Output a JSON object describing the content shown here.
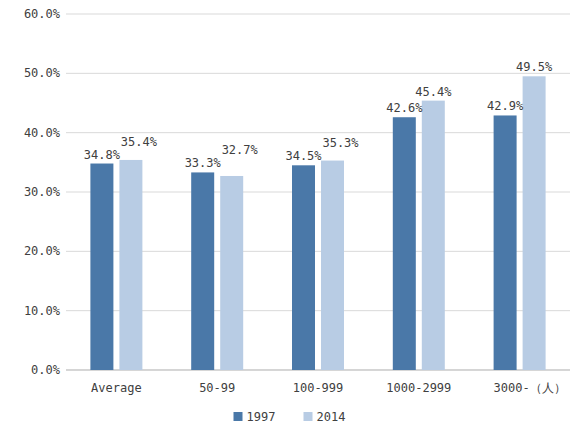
{
  "chart_data": {
    "type": "bar",
    "categories": [
      "Average",
      "50-99",
      "100-999",
      "1000-2999",
      "3000-（人）"
    ],
    "series": [
      {
        "name": "1997",
        "color": "#4a78a8",
        "values": [
          34.8,
          33.3,
          34.5,
          42.6,
          42.9
        ],
        "value_labels": [
          "34.8%",
          "33.3%",
          "34.5%",
          "42.6%",
          "42.9%"
        ]
      },
      {
        "name": "2014",
        "color": "#b8cce4",
        "values": [
          35.4,
          32.7,
          35.3,
          45.4,
          49.5
        ],
        "value_labels": [
          "35.4%",
          "32.7%",
          "35.3%",
          "45.4%",
          "49.5%"
        ]
      }
    ],
    "ylim": [
      0,
      60
    ],
    "yticks": [
      {
        "value": 0,
        "label": "0.0%"
      },
      {
        "value": 10,
        "label": "10.0%"
      },
      {
        "value": 20,
        "label": "20.0%"
      },
      {
        "value": 30,
        "label": "30.0%"
      },
      {
        "value": 40,
        "label": "40.0%"
      },
      {
        "value": 50,
        "label": "50.0%"
      },
      {
        "value": 60,
        "label": "60.0%"
      }
    ],
    "grid": true,
    "legend": "bottom",
    "data_labels": true
  }
}
